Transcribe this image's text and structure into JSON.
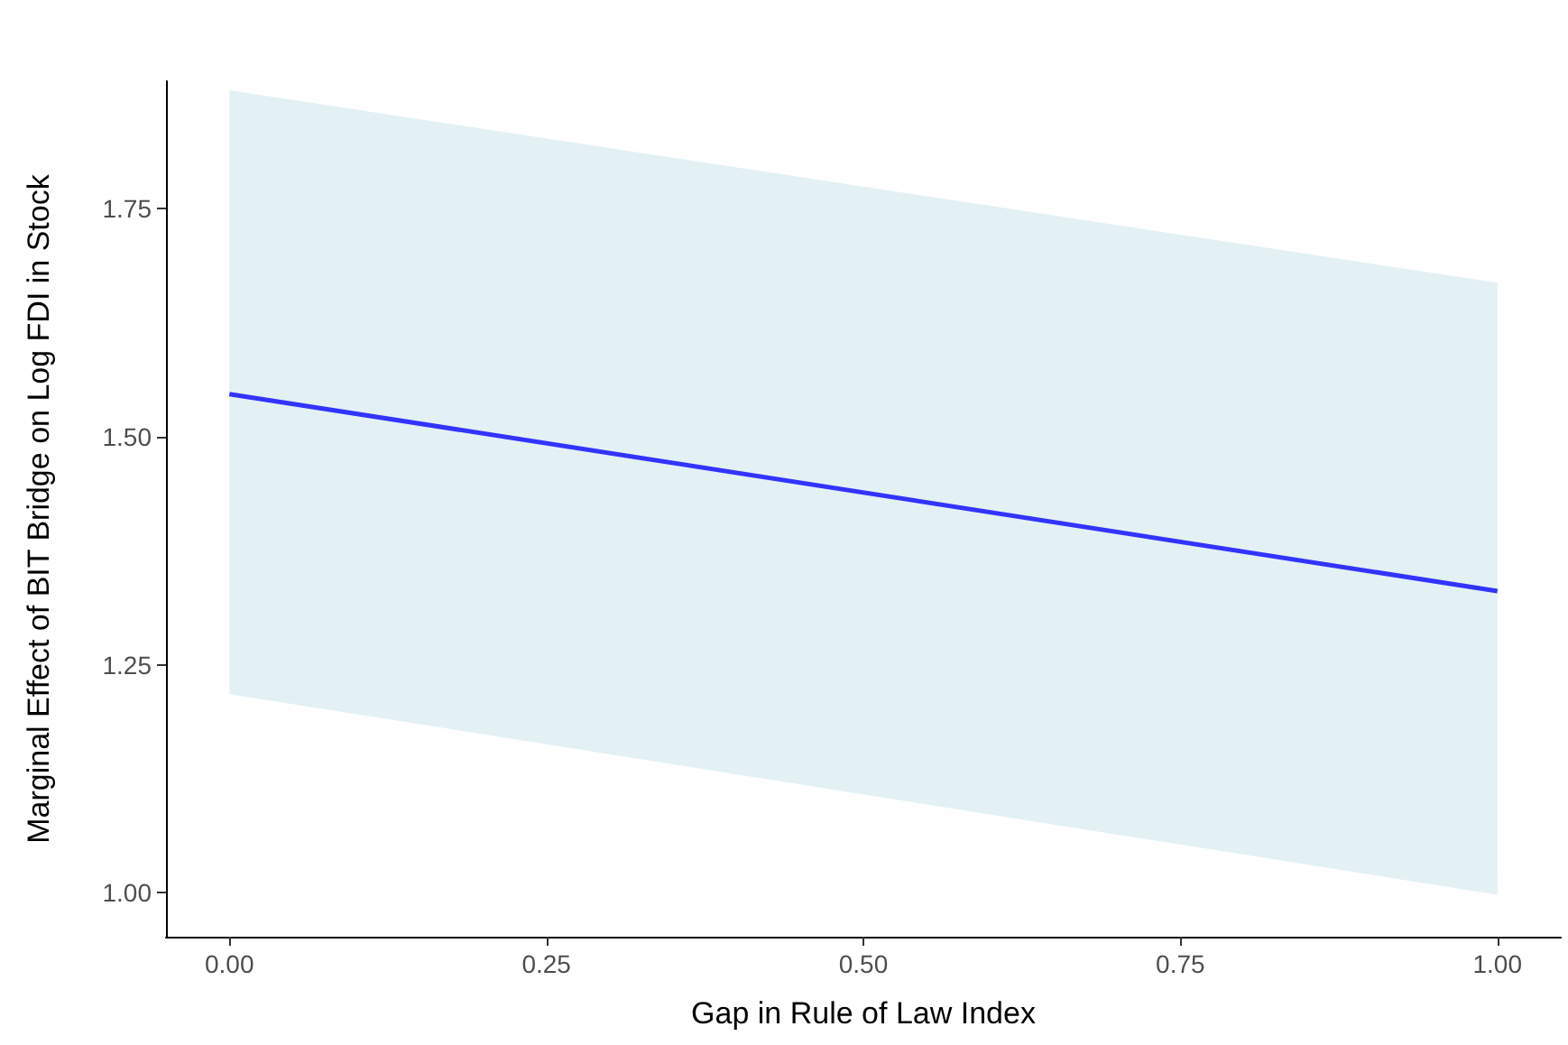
{
  "chart_data": {
    "type": "line",
    "xlabel": "Gap in Rule of Law Index",
    "ylabel": "Marginal Effect of BIT Bridge on Log FDI in Stock",
    "x": [
      0,
      1
    ],
    "series": [
      {
        "color": "#3333ff",
        "values": [
          1.547,
          1.331
        ],
        "lower": [
          1.218,
          0.998
        ],
        "upper": [
          1.88,
          1.669
        ]
      }
    ],
    "xlim": [
      -0.05,
      1.05
    ],
    "xticks": [
      {
        "value": 0,
        "label": "0.00"
      },
      {
        "value": 0.25,
        "label": "0.25"
      },
      {
        "value": 0.5,
        "label": "0.50"
      },
      {
        "value": 0.75,
        "label": "0.75"
      },
      {
        "value": 1,
        "label": "1.00"
      }
    ],
    "ylim": [
      0.952,
      1.89
    ],
    "yticks": [
      {
        "value": 1,
        "label": "1.00"
      },
      {
        "value": 1.25,
        "label": "1.25"
      },
      {
        "value": 1.5,
        "label": "1.50"
      },
      {
        "value": 1.75,
        "label": "1.75"
      }
    ],
    "grid": false,
    "marker": "none",
    "line_style": "solid"
  }
}
